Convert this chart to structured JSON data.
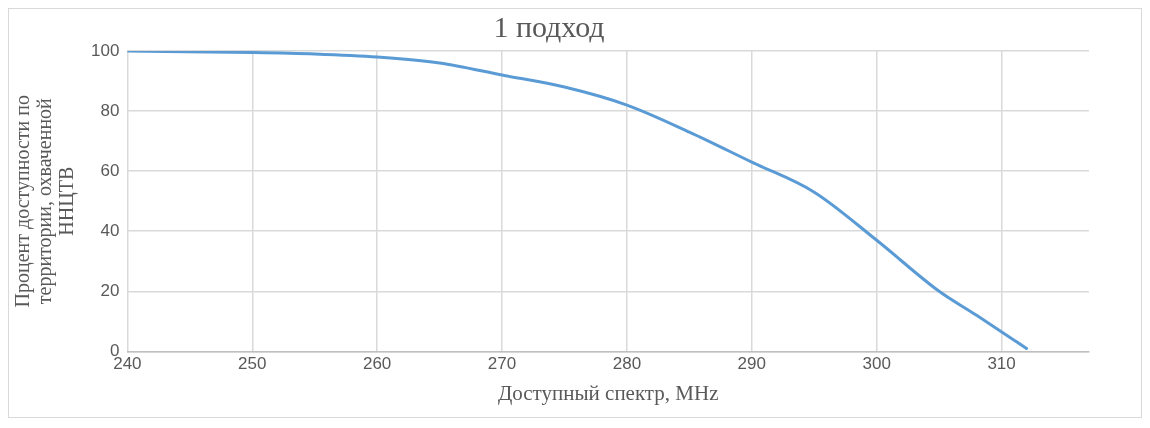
{
  "chart_data": {
    "type": "line",
    "title": "1 подход",
    "xlabel": "Доступный спектр, MHz",
    "ylabel": "Процент доступности по\nтерритории, охваченной\nННЦТВ",
    "x": [
      240,
      250,
      255,
      260,
      265,
      270,
      275,
      280,
      285,
      290,
      295,
      300,
      305,
      308,
      312
    ],
    "series": [
      {
        "color": "#5b9bd5",
        "values": [
          100,
          99.5,
          99,
          98,
          96,
          92,
          88,
          82,
          73,
          63,
          53,
          37,
          20,
          12,
          1
        ]
      }
    ],
    "xlim": [
      240,
      317
    ],
    "xticks": [
      240,
      250,
      260,
      270,
      280,
      290,
      300,
      310
    ],
    "ylim": [
      0,
      100
    ],
    "yticks": [
      0,
      20,
      40,
      60,
      80,
      100
    ],
    "grid": true,
    "legend": false,
    "marker": "none",
    "line_style": "solid"
  }
}
